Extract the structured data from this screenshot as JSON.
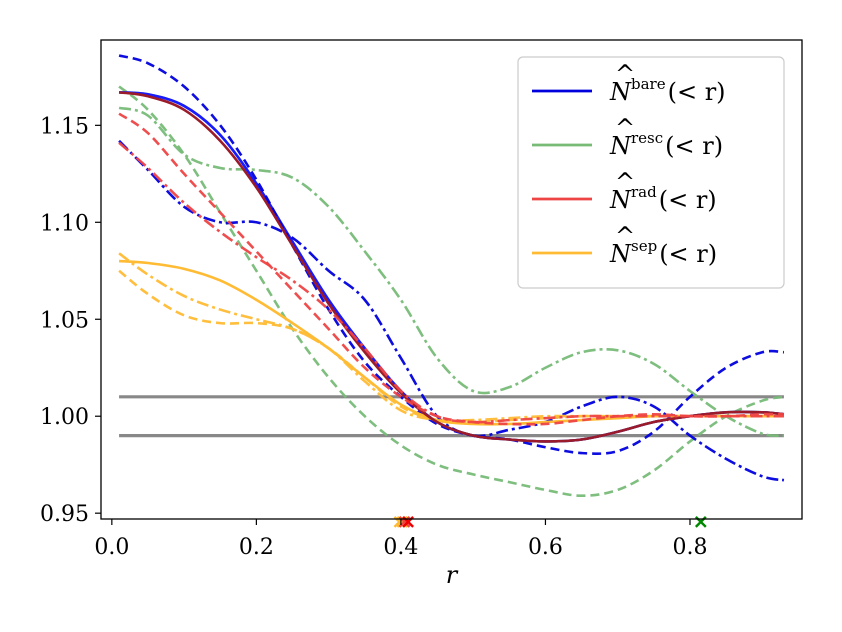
{
  "chart_data": {
    "type": "line",
    "title": "",
    "xlabel": "r",
    "ylabel": "",
    "xlim": [
      -0.015,
      0.955
    ],
    "ylim": [
      0.947,
      1.194
    ],
    "x_ticks": [
      {
        "value": 0.0,
        "label": "0.0"
      },
      {
        "value": 0.2,
        "label": "0.2"
      },
      {
        "value": 0.4,
        "label": "0.4"
      },
      {
        "value": 0.6,
        "label": "0.6"
      },
      {
        "value": 0.8,
        "label": "0.8"
      }
    ],
    "y_ticks": [
      {
        "value": 0.95,
        "label": "0.95"
      },
      {
        "value": 1.0,
        "label": "1.00"
      },
      {
        "value": 1.05,
        "label": "1.05"
      },
      {
        "value": 1.1,
        "label": "1.10"
      },
      {
        "value": 1.15,
        "label": "1.15"
      }
    ],
    "legend": {
      "position": "upper-right",
      "entries": [
        {
          "name": "bare",
          "symbol": "N",
          "superscript": "bare",
          "suffix": "(< r)",
          "color": "#0000dd"
        },
        {
          "name": "resc",
          "symbol": "N",
          "superscript": "resc",
          "suffix": "(< r)",
          "color": "#77bb77"
        },
        {
          "name": "rad",
          "symbol": "N",
          "superscript": "rad",
          "suffix": "(< r)",
          "color": "#ee4444"
        },
        {
          "name": "sep",
          "symbol": "N",
          "superscript": "sep",
          "suffix": "(< r)",
          "color": "#ffbb33"
        }
      ]
    },
    "reference_lines": [
      {
        "y": 1.01,
        "color": "#888888"
      },
      {
        "y": 0.99,
        "color": "#888888"
      }
    ],
    "series": [
      {
        "name": "bare-solid",
        "family": "bare",
        "style": "solid",
        "x": [
          0.01,
          0.05,
          0.1,
          0.15,
          0.2,
          0.25,
          0.3,
          0.35,
          0.4,
          0.45,
          0.5,
          0.55,
          0.6,
          0.65,
          0.7,
          0.75,
          0.8,
          0.85,
          0.9,
          0.93
        ],
        "y": [
          1.167,
          1.166,
          1.16,
          1.145,
          1.12,
          1.09,
          1.06,
          1.035,
          1.013,
          0.997,
          0.99,
          0.988,
          0.987,
          0.988,
          0.992,
          0.997,
          1.0,
          1.002,
          1.002,
          1.001
        ]
      },
      {
        "name": "bare-dashed",
        "family": "bare",
        "style": "dashed",
        "x": [
          0.01,
          0.05,
          0.1,
          0.15,
          0.2,
          0.25,
          0.3,
          0.35,
          0.4,
          0.45,
          0.5,
          0.55,
          0.6,
          0.65,
          0.7,
          0.75,
          0.8,
          0.85,
          0.9,
          0.93
        ],
        "y": [
          1.186,
          1.182,
          1.17,
          1.15,
          1.122,
          1.088,
          1.055,
          1.028,
          1.01,
          0.996,
          0.99,
          0.988,
          0.984,
          0.981,
          0.982,
          0.992,
          1.01,
          1.025,
          1.033,
          1.033
        ]
      },
      {
        "name": "bare-dashdot",
        "family": "bare",
        "style": "dashdot",
        "x": [
          0.01,
          0.05,
          0.1,
          0.15,
          0.2,
          0.25,
          0.3,
          0.35,
          0.4,
          0.45,
          0.5,
          0.55,
          0.6,
          0.65,
          0.7,
          0.75,
          0.8,
          0.85,
          0.9,
          0.93
        ],
        "y": [
          1.142,
          1.127,
          1.108,
          1.1,
          1.1,
          1.092,
          1.075,
          1.06,
          1.03,
          1.0,
          0.99,
          0.993,
          0.997,
          1.005,
          1.01,
          1.005,
          0.99,
          0.978,
          0.969,
          0.967
        ]
      },
      {
        "name": "resc-solid",
        "family": "resc",
        "style": "solid",
        "x": [
          0.01,
          0.05,
          0.1,
          0.15,
          0.2,
          0.25,
          0.3,
          0.35,
          0.4,
          0.45,
          0.5,
          0.55,
          0.6,
          0.65,
          0.7,
          0.75,
          0.8,
          0.85,
          0.9,
          0.93
        ],
        "y": [
          1.167,
          1.166,
          1.16,
          1.145,
          1.12,
          1.09,
          1.06,
          1.035,
          1.013,
          0.997,
          0.99,
          0.988,
          0.987,
          0.988,
          0.992,
          0.997,
          1.0,
          1.002,
          1.002,
          1.001
        ]
      },
      {
        "name": "resc-dashed",
        "family": "resc",
        "style": "dashed",
        "x": [
          0.01,
          0.05,
          0.1,
          0.15,
          0.2,
          0.25,
          0.3,
          0.35,
          0.4,
          0.45,
          0.5,
          0.55,
          0.6,
          0.65,
          0.7,
          0.75,
          0.8,
          0.85,
          0.9,
          0.93
        ],
        "y": [
          1.17,
          1.158,
          1.135,
          1.105,
          1.075,
          1.045,
          1.02,
          1.0,
          0.985,
          0.975,
          0.97,
          0.966,
          0.962,
          0.959,
          0.962,
          0.972,
          0.987,
          1.0,
          1.008,
          1.01
        ]
      },
      {
        "name": "resc-dashdot",
        "family": "resc",
        "style": "dashdot",
        "x": [
          0.01,
          0.05,
          0.1,
          0.15,
          0.2,
          0.25,
          0.3,
          0.35,
          0.4,
          0.45,
          0.5,
          0.55,
          0.6,
          0.65,
          0.7,
          0.75,
          0.8,
          0.85,
          0.9,
          0.93
        ],
        "y": [
          1.159,
          1.155,
          1.135,
          1.128,
          1.127,
          1.123,
          1.108,
          1.085,
          1.06,
          1.03,
          1.013,
          1.015,
          1.025,
          1.033,
          1.034,
          1.027,
          1.013,
          1.0,
          0.991,
          0.99
        ]
      },
      {
        "name": "rad-solid",
        "family": "rad",
        "style": "solid",
        "x": [
          0.01,
          0.05,
          0.1,
          0.15,
          0.2,
          0.25,
          0.3,
          0.35,
          0.4,
          0.45,
          0.5,
          0.55,
          0.6,
          0.65,
          0.7,
          0.75,
          0.8,
          0.85,
          0.9,
          0.93
        ],
        "y": [
          1.167,
          1.165,
          1.158,
          1.142,
          1.118,
          1.088,
          1.058,
          1.033,
          1.012,
          0.997,
          0.99,
          0.988,
          0.987,
          0.988,
          0.992,
          0.997,
          1.0,
          1.002,
          1.002,
          1.001
        ]
      },
      {
        "name": "rad-dashed",
        "family": "rad",
        "style": "dashed",
        "x": [
          0.01,
          0.05,
          0.1,
          0.15,
          0.2,
          0.25,
          0.3,
          0.35,
          0.4,
          0.45,
          0.5,
          0.55,
          0.6,
          0.65,
          0.7,
          0.75,
          0.8,
          0.85,
          0.9,
          0.93
        ],
        "y": [
          1.156,
          1.146,
          1.125,
          1.105,
          1.085,
          1.065,
          1.045,
          1.025,
          1.01,
          1.0,
          0.997,
          0.996,
          0.996,
          0.998,
          1.0,
          1.001,
          1.0,
          1.0,
          1.001,
          1.001
        ]
      },
      {
        "name": "rad-dashdot",
        "family": "rad",
        "style": "dashdot",
        "x": [
          0.01,
          0.05,
          0.1,
          0.15,
          0.2,
          0.25,
          0.3,
          0.35,
          0.4,
          0.45,
          0.5,
          0.55,
          0.6,
          0.65,
          0.7,
          0.75,
          0.8,
          0.85,
          0.9,
          0.93
        ],
        "y": [
          1.141,
          1.128,
          1.11,
          1.095,
          1.082,
          1.07,
          1.055,
          1.035,
          1.013,
          1.0,
          0.997,
          0.998,
          0.999,
          1.0,
          1.0,
          1.0,
          1.0,
          1.0,
          1.0,
          1.0
        ]
      },
      {
        "name": "sep-solid",
        "family": "sep",
        "style": "solid",
        "x": [
          0.01,
          0.05,
          0.1,
          0.15,
          0.2,
          0.25,
          0.3,
          0.35,
          0.4,
          0.45,
          0.5,
          0.55,
          0.6,
          0.65,
          0.7,
          0.75,
          0.8,
          0.85,
          0.9,
          0.93
        ],
        "y": [
          1.08,
          1.079,
          1.076,
          1.07,
          1.06,
          1.048,
          1.035,
          1.02,
          1.006,
          0.998,
          0.996,
          0.996,
          0.997,
          0.998,
          0.999,
          1.0,
          1.0,
          1.0,
          1.0,
          1.0
        ]
      },
      {
        "name": "sep-dashed",
        "family": "sep",
        "style": "dashed",
        "x": [
          0.01,
          0.05,
          0.1,
          0.15,
          0.2,
          0.25,
          0.3,
          0.35,
          0.4,
          0.45,
          0.5,
          0.55,
          0.6,
          0.65,
          0.7,
          0.75,
          0.8,
          0.85,
          0.9,
          0.93
        ],
        "y": [
          1.075,
          1.063,
          1.052,
          1.048,
          1.048,
          1.045,
          1.035,
          1.02,
          1.005,
          0.998,
          0.997,
          0.998,
          0.999,
          1.0,
          1.0,
          1.0,
          1.0,
          1.0,
          1.0,
          1.0
        ]
      },
      {
        "name": "sep-dashdot",
        "family": "sep",
        "style": "dashdot",
        "x": [
          0.01,
          0.05,
          0.1,
          0.15,
          0.2,
          0.25,
          0.3,
          0.35,
          0.4,
          0.45,
          0.5,
          0.55,
          0.6,
          0.65,
          0.7,
          0.75,
          0.8,
          0.85,
          0.9,
          0.93
        ],
        "y": [
          1.084,
          1.073,
          1.062,
          1.055,
          1.05,
          1.045,
          1.035,
          1.018,
          1.003,
          0.998,
          0.998,
          0.999,
          1.0,
          1.0,
          1.0,
          1.0,
          1.0,
          1.0,
          1.0,
          1.0
        ]
      }
    ],
    "markers": [
      {
        "x": 0.398,
        "y": 0.9455,
        "color": "#ffbb33",
        "shape": "x"
      },
      {
        "x": 0.402,
        "y": 0.9455,
        "color": "#ffbb33",
        "shape": "x"
      },
      {
        "x": 0.405,
        "y": 0.9455,
        "color": "#ee4444",
        "shape": "x"
      },
      {
        "x": 0.41,
        "y": 0.9455,
        "color": "#ee0000",
        "shape": "x"
      },
      {
        "x": 0.815,
        "y": 0.9455,
        "color": "#008800",
        "shape": "x"
      }
    ]
  },
  "style_colors": {
    "bare": "#0000dd",
    "resc": "#77bb77",
    "rad": "#ee4444",
    "sep": "#ffbb33",
    "solid_override": {
      "bare-solid": "#1a1aff",
      "resc-solid": "#77bb77",
      "rad-solid": "#9b1b2a",
      "sep-solid": "#ffbb33"
    },
    "reference": "#888888"
  }
}
